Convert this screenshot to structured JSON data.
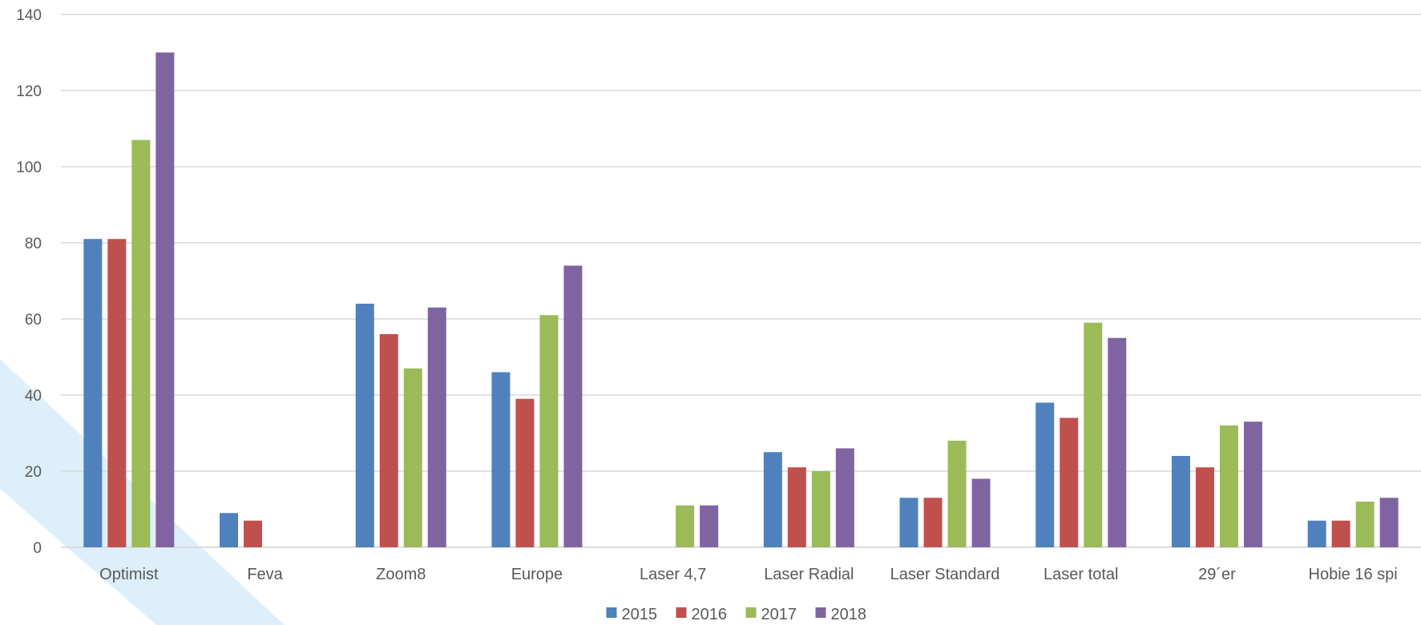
{
  "chart_data": {
    "type": "bar",
    "categories": [
      "Optimist",
      "Feva",
      "Zoom8",
      "Europe",
      "Laser 4,7",
      "Laser Radial",
      "Laser Standard",
      "Laser total",
      "29´er",
      "Hobie 16 spi"
    ],
    "series": [
      {
        "name": "2015",
        "color": "#4F81BD",
        "values": [
          81,
          9,
          64,
          46,
          0,
          25,
          13,
          38,
          24,
          7
        ]
      },
      {
        "name": "2016",
        "color": "#C0504D",
        "values": [
          81,
          7,
          56,
          39,
          0,
          21,
          13,
          34,
          21,
          7
        ]
      },
      {
        "name": "2017",
        "color": "#9BBB59",
        "values": [
          107,
          0,
          47,
          61,
          11,
          20,
          28,
          59,
          32,
          12
        ]
      },
      {
        "name": "2018",
        "color": "#8064A2",
        "values": [
          130,
          0,
          63,
          74,
          11,
          26,
          18,
          55,
          33,
          13
        ]
      }
    ],
    "yticks": [
      "0",
      "20",
      "40",
      "60",
      "80",
      "100",
      "120",
      "140"
    ],
    "ylim": [
      0,
      140
    ],
    "grid": true,
    "legend_position": "bottom",
    "background_decoration_color": "#DDEFFA",
    "gridline_color": "#D9D9D9"
  }
}
